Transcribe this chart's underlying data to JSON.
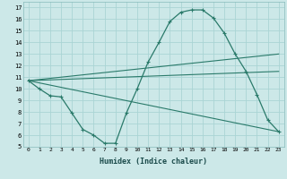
{
  "xlabel": "Humidex (Indice chaleur)",
  "background_color": "#cce8e8",
  "grid_color": "#aad4d4",
  "line_color": "#2a7a6a",
  "xlim": [
    -0.5,
    23.5
  ],
  "ylim": [
    5,
    17.5
  ],
  "xticks": [
    0,
    1,
    2,
    3,
    4,
    5,
    6,
    7,
    8,
    9,
    10,
    11,
    12,
    13,
    14,
    15,
    16,
    17,
    18,
    19,
    20,
    21,
    22,
    23
  ],
  "yticks": [
    5,
    6,
    7,
    8,
    9,
    10,
    11,
    12,
    13,
    14,
    15,
    16,
    17
  ],
  "line1_x": [
    0,
    1,
    2,
    3,
    4,
    5,
    6,
    7,
    8,
    9,
    10,
    11,
    12,
    13,
    14,
    15,
    16,
    17,
    18,
    19,
    20,
    21,
    22,
    23
  ],
  "line1_y": [
    10.7,
    10.0,
    9.4,
    9.3,
    7.9,
    6.5,
    6.0,
    5.3,
    5.3,
    7.9,
    10.0,
    12.3,
    14.0,
    15.8,
    16.6,
    16.8,
    16.8,
    16.1,
    14.8,
    13.0,
    11.5,
    9.5,
    7.3,
    6.3
  ],
  "line2_x": [
    0,
    23
  ],
  "line2_y": [
    10.7,
    13.0
  ],
  "line3_x": [
    0,
    23
  ],
  "line3_y": [
    10.7,
    11.5
  ],
  "line4_x": [
    0,
    23
  ],
  "line4_y": [
    10.7,
    6.3
  ]
}
